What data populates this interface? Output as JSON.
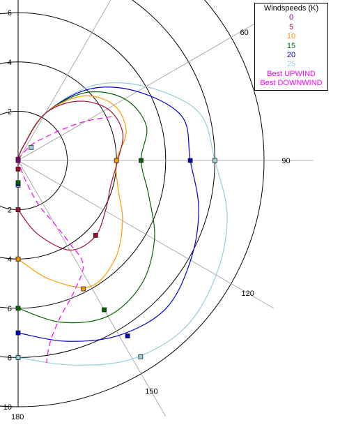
{
  "legend": {
    "title": "Windspeeds (K)",
    "items": [
      {
        "label": "0",
        "color": "#800080"
      },
      {
        "label": "5",
        "color": "#a01030"
      },
      {
        "label": "10",
        "color": "#ff9900"
      },
      {
        "label": "15",
        "color": "#006600"
      },
      {
        "label": "20",
        "color": "#0000cc"
      },
      {
        "label": "25",
        "color": "#99ccdd"
      },
      {
        "label": "Best UPWIND",
        "color": "#ff00ff"
      },
      {
        "label": "Best DOWNWIND",
        "color": "#ff00ff"
      }
    ]
  },
  "chart_data": {
    "type": "polar",
    "radial_max": 10,
    "radial_tick_labels": [
      {
        "value": 6,
        "label": "6"
      },
      {
        "value": 4,
        "label": "4"
      },
      {
        "value": 2,
        "label": "2"
      },
      {
        "value": 2,
        "label": "2"
      },
      {
        "value": 4,
        "label": "4"
      },
      {
        "value": 6,
        "label": "6"
      },
      {
        "value": 8,
        "label": "8"
      },
      {
        "value": 10,
        "label": "10"
      }
    ],
    "angle_tick_labels": [
      {
        "angle": 60,
        "label": "60"
      },
      {
        "angle": 90,
        "label": "90"
      },
      {
        "angle": 120,
        "label": "120"
      },
      {
        "angle": 150,
        "label": "150"
      },
      {
        "angle": 180,
        "label": "180"
      }
    ],
    "series": [
      {
        "name": "5",
        "color": "#a01030",
        "points": [
          [
            0,
            0.05
          ],
          [
            20,
            0.6
          ],
          [
            30,
            2.2
          ],
          [
            45,
            3.4
          ],
          [
            60,
            4.2
          ],
          [
            75,
            4.4
          ],
          [
            90,
            4.05
          ],
          [
            105,
            3.9
          ],
          [
            120,
            4.1
          ],
          [
            135,
            4.4
          ],
          [
            150,
            4.2
          ],
          [
            165,
            3.1
          ],
          [
            180,
            2.0
          ]
        ],
        "markers": [
          [
            0,
            0.05
          ],
          [
            134,
            4.38
          ],
          [
            180,
            2.0
          ]
        ]
      },
      {
        "name": "10",
        "color": "#ff9900",
        "points": [
          [
            0,
            0.05
          ],
          [
            20,
            0.6
          ],
          [
            30,
            2.2
          ],
          [
            45,
            3.7
          ],
          [
            60,
            4.5
          ],
          [
            75,
            4.55
          ],
          [
            90,
            4.0
          ],
          [
            105,
            4.2
          ],
          [
            120,
            4.9
          ],
          [
            135,
            5.6
          ],
          [
            150,
            5.9
          ],
          [
            165,
            5.0
          ],
          [
            180,
            4.0
          ]
        ],
        "markers": [
          [
            90,
            4.0
          ],
          [
            153,
            5.85
          ],
          [
            180,
            4.0
          ]
        ]
      },
      {
        "name": "15",
        "color": "#006600",
        "points": [
          [
            0,
            0.05
          ],
          [
            20,
            0.6
          ],
          [
            30,
            2.2
          ],
          [
            45,
            3.9
          ],
          [
            60,
            5.0
          ],
          [
            75,
            5.4
          ],
          [
            90,
            5.0
          ],
          [
            105,
            5.5
          ],
          [
            120,
            6.4
          ],
          [
            135,
            7.1
          ],
          [
            150,
            7.3
          ],
          [
            165,
            6.8
          ],
          [
            180,
            6.0
          ]
        ],
        "markers": [
          [
            90,
            5.0
          ],
          [
            150,
            7.0
          ],
          [
            180,
            6.0
          ]
        ]
      },
      {
        "name": "20",
        "color": "#0000cc",
        "points": [
          [
            0,
            0.05
          ],
          [
            20,
            0.6
          ],
          [
            30,
            2.2
          ],
          [
            45,
            4.1
          ],
          [
            60,
            5.6
          ],
          [
            75,
            6.9
          ],
          [
            90,
            7.0
          ],
          [
            105,
            7.6
          ],
          [
            120,
            8.1
          ],
          [
            135,
            8.5
          ],
          [
            150,
            8.2
          ],
          [
            165,
            7.6
          ],
          [
            180,
            7.0
          ]
        ],
        "markers": [
          [
            90,
            7.0
          ],
          [
            148,
            8.4
          ],
          [
            180,
            7.0
          ]
        ]
      },
      {
        "name": "25",
        "color": "#99ccdd",
        "points": [
          [
            0,
            0.05
          ],
          [
            20,
            0.6
          ],
          [
            30,
            2.2
          ],
          [
            45,
            4.3
          ],
          [
            60,
            6.0
          ],
          [
            75,
            7.6
          ],
          [
            90,
            8.0
          ],
          [
            105,
            8.8
          ],
          [
            120,
            9.3
          ],
          [
            135,
            9.6
          ],
          [
            150,
            9.3
          ],
          [
            165,
            8.6
          ],
          [
            180,
            8.0
          ]
        ],
        "markers": [
          [
            90,
            8.0
          ],
          [
            148,
            9.4
          ],
          [
            180,
            8.0
          ]
        ]
      }
    ],
    "extra_markers": [
      {
        "color": "#99ccdd",
        "points": [
          [
            45,
            0.75
          ],
          [
            180,
            1.0
          ]
        ]
      },
      {
        "color": "#0000cc",
        "points": [
          [
            180,
            0.95
          ]
        ]
      },
      {
        "color": "#a01030",
        "points": [
          [
            180,
            0.35
          ]
        ]
      },
      {
        "color": "#006600",
        "points": [
          [
            180,
            0.9
          ]
        ]
      },
      {
        "color": "#800080",
        "points": [
          [
            0,
            0
          ]
        ]
      }
    ],
    "best_upwind": {
      "color": "#ff00ff",
      "points": [
        [
          0,
          0.05
        ],
        [
          40,
          0.8
        ],
        [
          50,
          1.5
        ],
        [
          55,
          2.2
        ],
        [
          60,
          3.2
        ],
        [
          65,
          4.2
        ]
      ]
    },
    "best_downwind": {
      "color": "#ff00ff",
      "points": [
        [
          0,
          0.05
        ],
        [
          160,
          0.8
        ],
        [
          155,
          2.0
        ],
        [
          150,
          3.0
        ],
        [
          148,
          4.0
        ],
        [
          148,
          5.0
        ],
        [
          157,
          5.8
        ],
        [
          165,
          6.6
        ],
        [
          170,
          7.5
        ],
        [
          172,
          8.3
        ]
      ]
    }
  }
}
